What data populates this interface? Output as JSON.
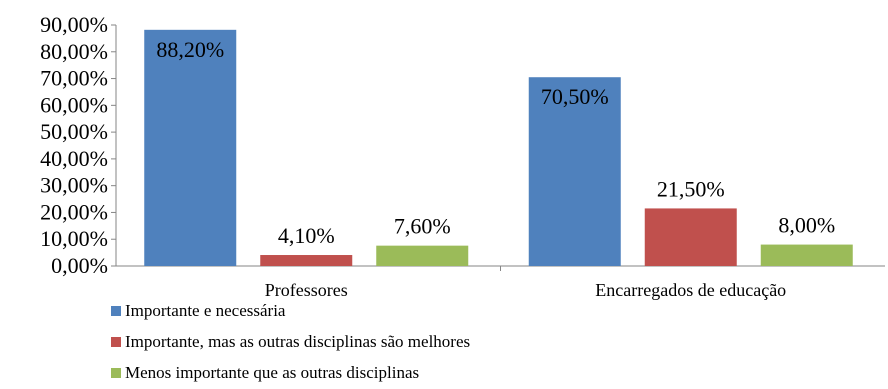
{
  "chart_data": {
    "type": "bar",
    "categories": [
      "Professores",
      "Encarregados de educação"
    ],
    "series": [
      {
        "name": "Importante e necessária",
        "color": "#4F81BD",
        "values": [
          88.2,
          70.5
        ]
      },
      {
        "name": "Importante, mas as outras disciplinas são melhores",
        "color": "#C0504D",
        "values": [
          4.1,
          21.5
        ]
      },
      {
        "name": "Menos importante que as outras disciplinas",
        "color": "#9BBB59",
        "values": [
          7.6,
          8.0
        ]
      }
    ],
    "data_labels": [
      [
        "88,20%",
        "70,50%"
      ],
      [
        "4,10%",
        "21,50%"
      ],
      [
        "7,60%",
        "8,00%"
      ]
    ],
    "yticks": [
      "0,00%",
      "10,00%",
      "20,00%",
      "30,00%",
      "40,00%",
      "50,00%",
      "60,00%",
      "70,00%",
      "80,00%",
      "90,00%"
    ],
    "ylim": [
      0,
      90
    ],
    "grid": false,
    "legend_position": "bottom-left",
    "title": "",
    "xlabel": "",
    "ylabel": ""
  }
}
